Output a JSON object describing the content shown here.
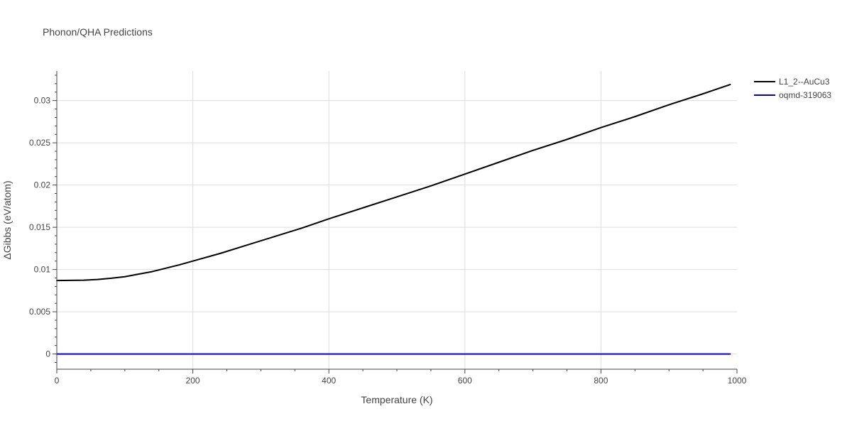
{
  "chart_data": {
    "type": "line",
    "title": "Phonon/QHA Predictions",
    "xlabel": "Temperature (K)",
    "ylabel": "ΔGibbs (eV/atom)",
    "xlim": [
      0,
      1000
    ],
    "ylim": [
      -0.0018,
      0.0335
    ],
    "x_ticks": [
      0,
      200,
      400,
      600,
      800,
      1000
    ],
    "x_tick_labels": [
      "0",
      "200",
      "400",
      "600",
      "800",
      "1000"
    ],
    "y_ticks": [
      0,
      0.005,
      0.01,
      0.015,
      0.02,
      0.025,
      0.03
    ],
    "y_tick_labels": [
      "0",
      "0.005",
      "0.01",
      "0.015",
      "0.02",
      "0.025",
      "0.03"
    ],
    "grid": true,
    "legend_position": "top-right",
    "series": [
      {
        "name": "L1_2--AuCu3",
        "color": "#000000",
        "x": [
          0,
          20,
          40,
          60,
          80,
          100,
          120,
          140,
          160,
          180,
          200,
          240,
          280,
          320,
          360,
          400,
          450,
          500,
          550,
          600,
          650,
          700,
          750,
          800,
          850,
          900,
          950,
          990
        ],
        "y": [
          0.0087,
          0.00872,
          0.00874,
          0.00882,
          0.00897,
          0.00915,
          0.00945,
          0.00975,
          0.01015,
          0.01055,
          0.011,
          0.0119,
          0.0129,
          0.0139,
          0.0149,
          0.016,
          0.0173,
          0.0186,
          0.0199,
          0.0213,
          0.0227,
          0.0241,
          0.0254,
          0.0268,
          0.0281,
          0.0295,
          0.0308,
          0.0319
        ]
      },
      {
        "name": "oqmd-319063",
        "color": "#0000dd",
        "x": [
          0,
          990
        ],
        "y": [
          0,
          0
        ]
      }
    ]
  }
}
